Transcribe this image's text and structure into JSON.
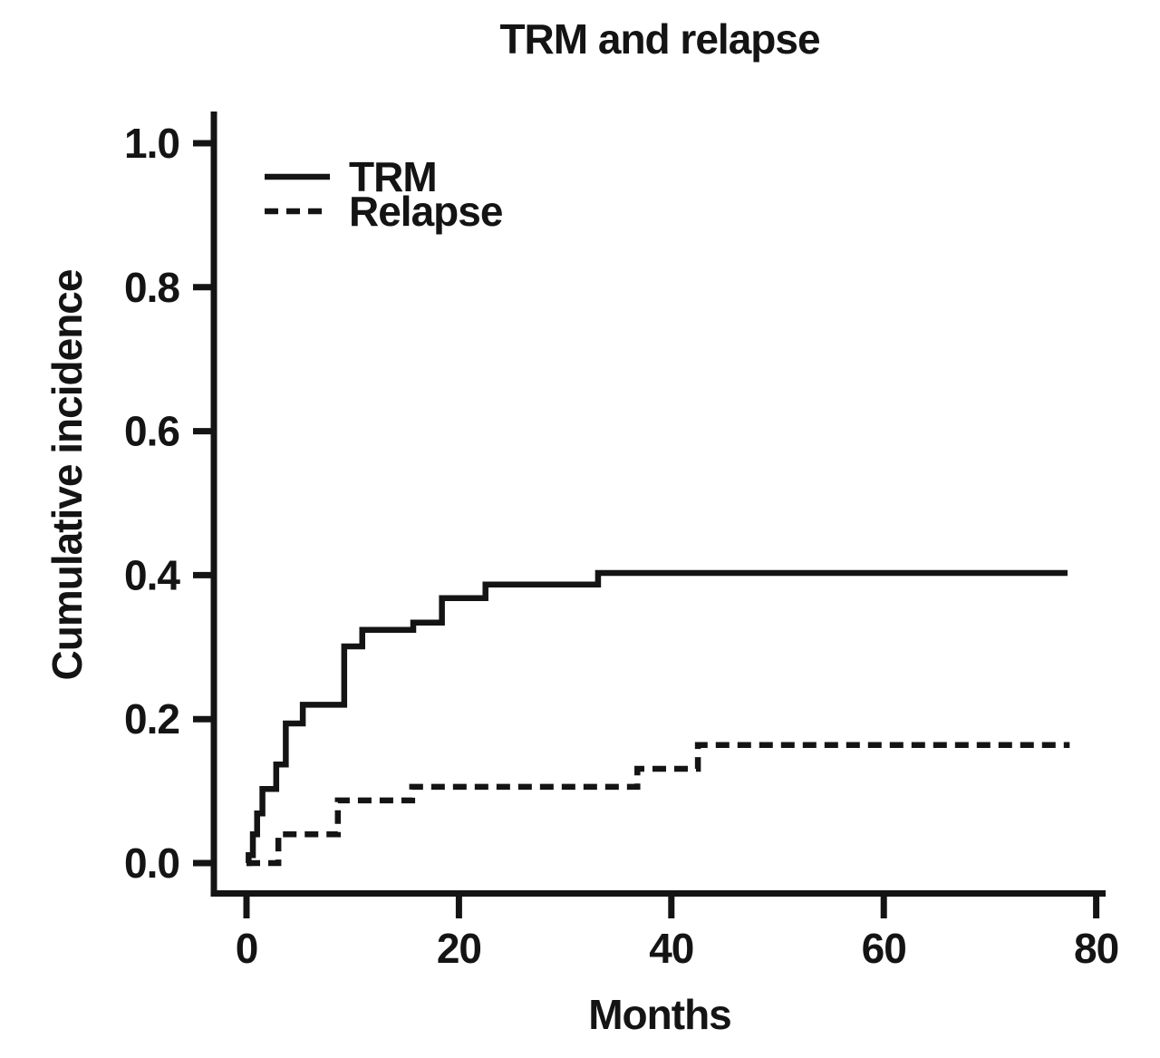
{
  "chart_data": {
    "type": "line",
    "subtype": "step",
    "title": "TRM and relapse",
    "xlabel": "Months",
    "ylabel": "Cumulative incidence",
    "xlim": [
      0,
      80
    ],
    "ylim": [
      0.0,
      1.0
    ],
    "xticks": [
      0,
      20,
      40,
      60,
      80
    ],
    "xtick_labels": [
      "0",
      "20",
      "40",
      "60",
      "80"
    ],
    "yticks": [
      0.0,
      0.2,
      0.4,
      0.6,
      0.8,
      1.0
    ],
    "ytick_labels": [
      "0.0",
      "0.2",
      "0.4",
      "0.6",
      "0.8",
      "1.0"
    ],
    "grid": false,
    "legend_position": "inside-top-left",
    "line_color": "#141414",
    "background_color": "#ffffff",
    "series": [
      {
        "name": "TRM",
        "line_style": "solid",
        "points": [
          [
            0,
            0.0
          ],
          [
            0.2,
            0.011
          ],
          [
            0.6,
            0.04
          ],
          [
            1.0,
            0.069
          ],
          [
            1.5,
            0.103
          ],
          [
            2.8,
            0.137
          ],
          [
            3.7,
            0.194
          ],
          [
            5.3,
            0.22
          ],
          [
            9.2,
            0.301
          ],
          [
            10.9,
            0.324
          ],
          [
            15.7,
            0.334
          ],
          [
            18.4,
            0.368
          ],
          [
            22.5,
            0.387
          ],
          [
            33.1,
            0.403
          ],
          [
            77.3,
            0.403
          ]
        ]
      },
      {
        "name": "Relapse",
        "line_style": "dashed",
        "points": [
          [
            0,
            0.0
          ],
          [
            3.0,
            0.04
          ],
          [
            8.6,
            0.087
          ],
          [
            15.6,
            0.106
          ],
          [
            36.8,
            0.131
          ],
          [
            42.5,
            0.164
          ],
          [
            77.5,
            0.164
          ]
        ]
      }
    ]
  }
}
